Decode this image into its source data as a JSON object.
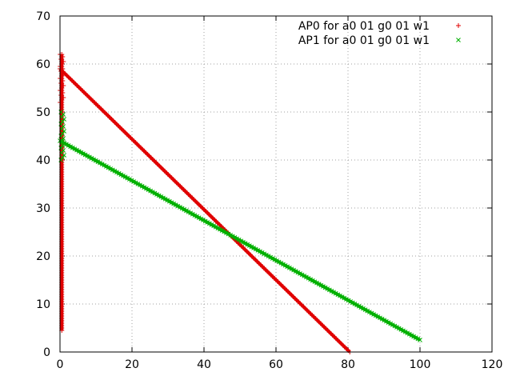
{
  "chart_data": {
    "type": "scatter",
    "title": "",
    "xlabel": "",
    "ylabel": "",
    "xlim": [
      0,
      120
    ],
    "ylim": [
      0,
      70
    ],
    "xticks": [
      0,
      20,
      40,
      60,
      80,
      100,
      120
    ],
    "yticks": [
      0,
      10,
      20,
      30,
      40,
      50,
      60,
      70
    ],
    "grid": true,
    "legend_position": "top-right",
    "series": [
      {
        "name": "AP0 for a0 01 g0 01 w1",
        "marker": "+",
        "color": "#e00000",
        "segments": [
          {
            "from": [
              0,
              59
            ],
            "to": [
              80.5,
              0
            ]
          },
          {
            "from": [
              0.5,
              62
            ],
            "to": [
              0.5,
              4.5
            ]
          }
        ],
        "cluster": {
          "x": 0.5,
          "y_range": [
            52,
            62
          ]
        }
      },
      {
        "name": "AP1 for a0 01 g0 01 w1",
        "marker": "x",
        "color": "#00b000",
        "segments": [
          {
            "from": [
              0,
              44
            ],
            "to": [
              100,
              2.5
            ]
          }
        ],
        "cluster": {
          "x": 0.7,
          "y_range": [
            40,
            50
          ]
        }
      }
    ]
  }
}
